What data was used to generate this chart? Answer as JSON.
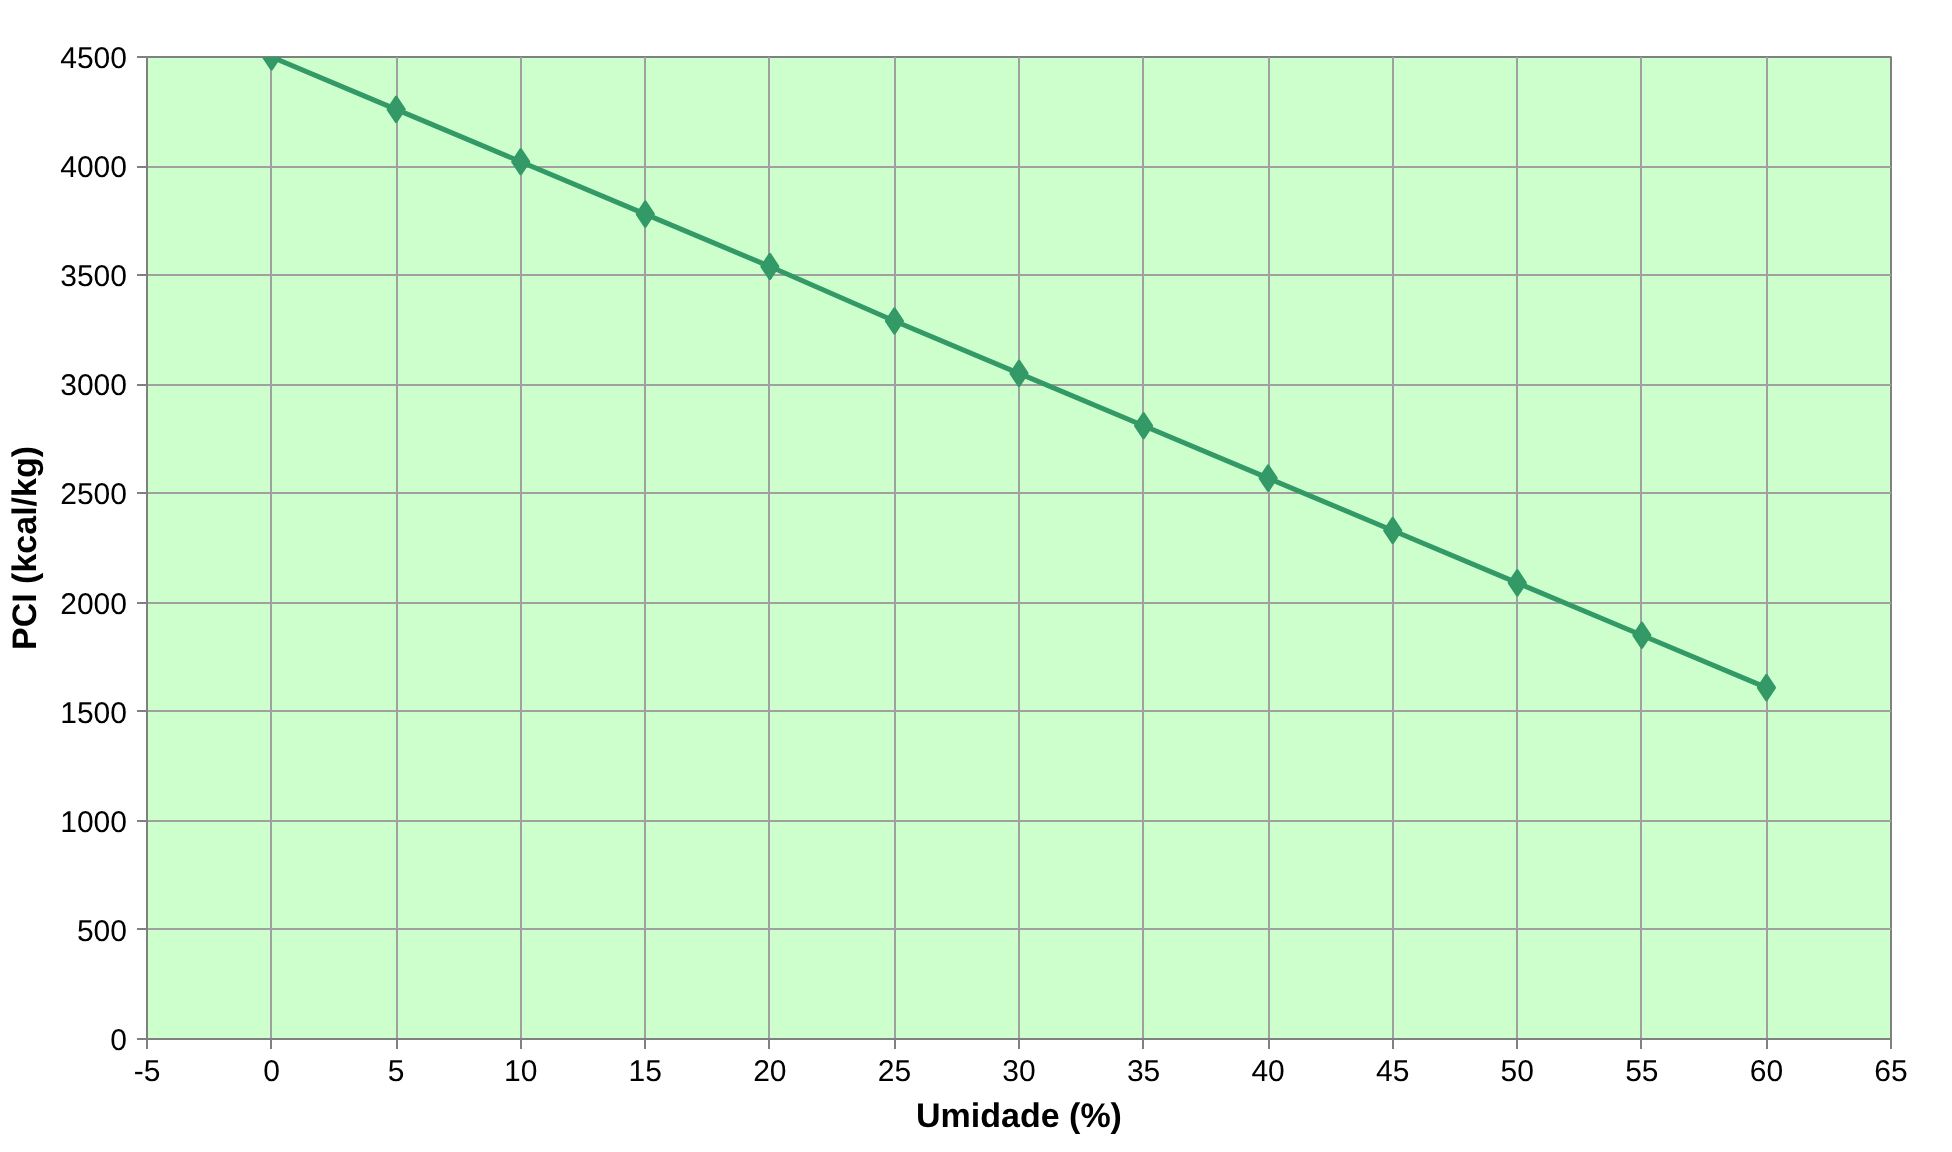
{
  "chart_data": {
    "type": "line",
    "xlabel": "Umidade (%)",
    "ylabel": "PCI (kcal/kg)",
    "x": [
      0,
      5,
      10,
      15,
      20,
      25,
      30,
      35,
      40,
      45,
      50,
      55,
      60
    ],
    "series": [
      {
        "color": "#339966",
        "values": [
          4500,
          4260,
          4020,
          3780,
          3540,
          3290,
          3050,
          2810,
          2570,
          2330,
          2090,
          1850,
          1610
        ]
      }
    ],
    "xlim": [
      -5,
      65
    ],
    "xticks": [
      -5,
      0,
      5,
      10,
      15,
      20,
      25,
      30,
      35,
      40,
      45,
      50,
      55,
      60,
      65
    ],
    "ylim": [
      0,
      4500
    ],
    "yticks": [
      0,
      500,
      1000,
      1500,
      2000,
      2500,
      3000,
      3500,
      4000,
      4500
    ],
    "grid": true,
    "marker": "diamond",
    "line_style": "solid"
  }
}
